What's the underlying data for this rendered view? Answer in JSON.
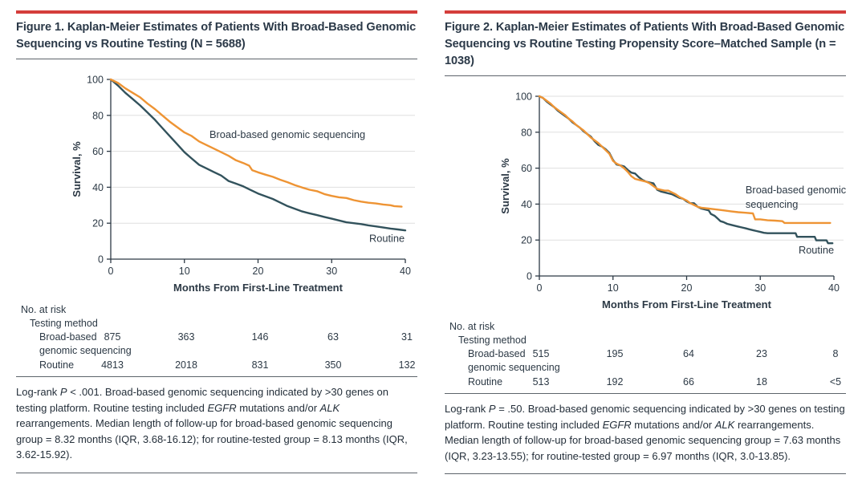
{
  "colors": {
    "accent_red": "#d43d3b",
    "ink": "#2c3945",
    "grid": "#dfdfdf",
    "rule": "#5d646b",
    "orange": "#ee9434",
    "teal": "#32525c"
  },
  "chart_data": [
    {
      "type": "line",
      "subtype": "kaplan-meier",
      "title": "",
      "xlabel": "Months From First-Line Treatment",
      "ylabel": "Survival, %",
      "xlim": [
        0,
        40
      ],
      "ylim": [
        0,
        100
      ],
      "xticks": [
        0,
        10,
        20,
        30,
        40
      ],
      "yticks": [
        0,
        20,
        40,
        60,
        80,
        100
      ],
      "grid": "horizontal",
      "legend_position": "in-plot-labels",
      "series": [
        {
          "name": "Broad-based genomic sequencing",
          "color": "#ee9434",
          "points": [
            [
              0,
              100
            ],
            [
              1,
              98
            ],
            [
              2,
              95
            ],
            [
              3,
              92.5
            ],
            [
              4,
              90
            ],
            [
              5,
              86.5
            ],
            [
              6,
              83.5
            ],
            [
              7,
              80
            ],
            [
              8,
              76.5
            ],
            [
              9,
              73.5
            ],
            [
              10,
              70.5
            ],
            [
              11,
              68.5
            ],
            [
              12,
              65.5
            ],
            [
              13,
              63.5
            ],
            [
              14,
              61.5
            ],
            [
              15,
              59.5
            ],
            [
              16,
              57.5
            ],
            [
              17,
              55
            ],
            [
              18,
              53.5
            ],
            [
              18.8,
              52
            ],
            [
              19.2,
              49.5
            ],
            [
              20,
              48.3
            ],
            [
              21,
              47
            ],
            [
              22,
              45.8
            ],
            [
              23,
              44.2
            ],
            [
              24,
              42.8
            ],
            [
              25,
              41.2
            ],
            [
              26,
              39.8
            ],
            [
              27,
              38.6
            ],
            [
              28,
              37.8
            ],
            [
              29,
              36.2
            ],
            [
              30,
              35.2
            ],
            [
              31,
              34.4
            ],
            [
              32,
              34
            ],
            [
              33,
              32.8
            ],
            [
              34,
              32
            ],
            [
              35,
              31.4
            ],
            [
              36,
              31
            ],
            [
              37,
              30.4
            ],
            [
              38,
              30
            ],
            [
              38.5,
              29.5
            ],
            [
              39.5,
              29.2
            ]
          ]
        },
        {
          "name": "Routine",
          "color": "#32525c",
          "points": [
            [
              0,
              100
            ],
            [
              1,
              96.5
            ],
            [
              2,
              92.5
            ],
            [
              3,
              89
            ],
            [
              4,
              85.5
            ],
            [
              5,
              81.5
            ],
            [
              6,
              77.5
            ],
            [
              7,
              73
            ],
            [
              8,
              68.5
            ],
            [
              9,
              64
            ],
            [
              10,
              59.5
            ],
            [
              11,
              56
            ],
            [
              12,
              52.5
            ],
            [
              13,
              50.5
            ],
            [
              14,
              48.5
            ],
            [
              15,
              46.5
            ],
            [
              15.5,
              45
            ],
            [
              16,
              43.5
            ],
            [
              17,
              42
            ],
            [
              18,
              40.5
            ],
            [
              19,
              38.5
            ],
            [
              20,
              36.5
            ],
            [
              21,
              35
            ],
            [
              22,
              33.5
            ],
            [
              23,
              31.5
            ],
            [
              24,
              29.5
            ],
            [
              25,
              28
            ],
            [
              26,
              26.5
            ],
            [
              27,
              25.5
            ],
            [
              28,
              24.5
            ],
            [
              29,
              23.5
            ],
            [
              30,
              22.5
            ],
            [
              31,
              21.5
            ],
            [
              32,
              20.5
            ],
            [
              33,
              20
            ],
            [
              34,
              19.5
            ],
            [
              35,
              18.8
            ],
            [
              36,
              18.2
            ],
            [
              37,
              17.6
            ],
            [
              38,
              17
            ],
            [
              39,
              16.5
            ],
            [
              40,
              16
            ]
          ]
        }
      ],
      "annotations": [
        {
          "lines": [
            "Broad-based genomic sequencing"
          ],
          "x": 13.4,
          "y": 67.5
        },
        {
          "lines": [
            "Routine"
          ],
          "x": 35.1,
          "y": 9.5
        }
      ]
    },
    {
      "type": "line",
      "subtype": "kaplan-meier",
      "title": "",
      "xlabel": "Months From First-Line Treatment",
      "ylabel": "Survival, %",
      "xlim": [
        0,
        40
      ],
      "ylim": [
        0,
        100
      ],
      "xticks": [
        0,
        10,
        20,
        30,
        40
      ],
      "yticks": [
        0,
        20,
        40,
        60,
        80,
        100
      ],
      "grid": "horizontal",
      "legend_position": "in-plot-labels",
      "series": [
        {
          "name": "Broad-based genomic sequencing",
          "color": "#ee9434",
          "points": [
            [
              0,
              100
            ],
            [
              0.5,
              99
            ],
            [
              1,
              97.5
            ],
            [
              1.5,
              96
            ],
            [
              2,
              94
            ],
            [
              2.5,
              92.5
            ],
            [
              3,
              91
            ],
            [
              3.5,
              89.5
            ],
            [
              4,
              87.5
            ],
            [
              4.5,
              86
            ],
            [
              5,
              84
            ],
            [
              5.5,
              82.5
            ],
            [
              6,
              81
            ],
            [
              6.5,
              79
            ],
            [
              7,
              77
            ],
            [
              7.5,
              75.5
            ],
            [
              8,
              74
            ],
            [
              8.5,
              72
            ],
            [
              9,
              70
            ],
            [
              9.5,
              68
            ],
            [
              10,
              64
            ],
            [
              10.5,
              62.5
            ],
            [
              11,
              61.5
            ],
            [
              11.5,
              60
            ],
            [
              12,
              58
            ],
            [
              12.5,
              55.5
            ],
            [
              13,
              54
            ],
            [
              13.5,
              53.5
            ],
            [
              14,
              53
            ],
            [
              14.5,
              52.5
            ],
            [
              15,
              51.5
            ],
            [
              15.5,
              50
            ],
            [
              16,
              48.5
            ],
            [
              16.5,
              48
            ],
            [
              17,
              47.5
            ],
            [
              17.5,
              47.5
            ],
            [
              18,
              46.5
            ],
            [
              18.5,
              45.5
            ],
            [
              19,
              44
            ],
            [
              19.5,
              43
            ],
            [
              20,
              42
            ],
            [
              20.5,
              40.5
            ],
            [
              21,
              39.5
            ],
            [
              21.5,
              38.5
            ],
            [
              22,
              38
            ],
            [
              23,
              37.5
            ],
            [
              24,
              37
            ],
            [
              25,
              36.5
            ],
            [
              26,
              36
            ],
            [
              27,
              35.5
            ],
            [
              28,
              35.2
            ],
            [
              29,
              34.8
            ],
            [
              29.3,
              31.5
            ],
            [
              30,
              31.5
            ],
            [
              31,
              31
            ],
            [
              32,
              30.8
            ],
            [
              33,
              30.5
            ],
            [
              33.3,
              29.5
            ],
            [
              36,
              29.5
            ],
            [
              39.5,
              29.5
            ]
          ]
        },
        {
          "name": "Routine",
          "color": "#32525c",
          "points": [
            [
              0,
              100
            ],
            [
              0.5,
              99
            ],
            [
              1,
              97
            ],
            [
              1.5,
              95.5
            ],
            [
              2,
              94
            ],
            [
              2.5,
              92
            ],
            [
              3,
              90.5
            ],
            [
              3.5,
              89
            ],
            [
              4,
              87.5
            ],
            [
              4.5,
              85.5
            ],
            [
              5,
              84
            ],
            [
              5.5,
              82.5
            ],
            [
              6,
              80.5
            ],
            [
              6.5,
              79
            ],
            [
              7,
              77.5
            ],
            [
              7.5,
              75
            ],
            [
              8,
              73
            ],
            [
              8.5,
              72
            ],
            [
              9,
              70.5
            ],
            [
              9.5,
              68.5
            ],
            [
              10,
              64.5
            ],
            [
              10.5,
              62
            ],
            [
              11,
              61.5
            ],
            [
              11.5,
              61
            ],
            [
              12,
              59
            ],
            [
              12.5,
              57.5
            ],
            [
              13,
              57
            ],
            [
              13.5,
              55
            ],
            [
              14,
              53.5
            ],
            [
              14.5,
              52.5
            ],
            [
              15,
              52
            ],
            [
              15.5,
              51.5
            ],
            [
              16,
              48
            ],
            [
              16.5,
              47
            ],
            [
              17,
              46.5
            ],
            [
              17.5,
              46
            ],
            [
              18,
              45.5
            ],
            [
              18.5,
              44.5
            ],
            [
              19,
              43.5
            ],
            [
              19.5,
              43
            ],
            [
              20,
              41.5
            ],
            [
              20.5,
              40.5
            ],
            [
              21,
              40.5
            ],
            [
              21.5,
              38.5
            ],
            [
              22,
              37.5
            ],
            [
              22.5,
              37
            ],
            [
              23,
              36.5
            ],
            [
              23.3,
              34.5
            ],
            [
              23.8,
              33.5
            ],
            [
              24.2,
              32
            ],
            [
              24.6,
              30.5
            ],
            [
              25,
              30
            ],
            [
              25.5,
              29
            ],
            [
              26,
              28.5
            ],
            [
              26.5,
              28
            ],
            [
              27,
              27.5
            ],
            [
              27.5,
              27
            ],
            [
              28,
              26.5
            ],
            [
              28.5,
              26
            ],
            [
              29,
              25.5
            ],
            [
              29.5,
              25
            ],
            [
              30,
              24.5
            ],
            [
              30.5,
              24
            ],
            [
              31,
              23.8
            ],
            [
              34.8,
              23.8
            ],
            [
              35,
              21.8
            ],
            [
              37.4,
              21.8
            ],
            [
              37.6,
              19.8
            ],
            [
              39,
              19.8
            ],
            [
              39.2,
              18.2
            ],
            [
              39.8,
              18.2
            ]
          ]
        }
      ],
      "annotations": [
        {
          "lines": [
            "Broad-based genomic",
            "sequencing"
          ],
          "x": 28,
          "y": 46
        },
        {
          "lines": [
            "Routine"
          ],
          "x": 35.2,
          "y": 12.5
        }
      ]
    }
  ],
  "panels": [
    {
      "title": "Figure 1. Kaplan-Meier Estimates of Patients With Broad-Based Genomic Sequencing vs Routine Testing (N = 5688)",
      "at_risk": {
        "heading": "No. at risk",
        "subheading": "Testing method",
        "rows": [
          {
            "label_lines": [
              "Broad-based",
              "genomic sequencing"
            ],
            "values": [
              "875",
              "363",
              "146",
              "63",
              "31"
            ]
          },
          {
            "label_lines": [
              "Routine"
            ],
            "values": [
              "4813",
              "2018",
              "831",
              "350",
              "132"
            ]
          }
        ]
      },
      "footnote": [
        {
          "t": "Log-rank "
        },
        {
          "t": "P",
          "i": true
        },
        {
          "t": " < .001. Broad-based genomic sequencing indicated by >30 genes on testing platform. Routine testing included "
        },
        {
          "t": "EGFR",
          "i": true
        },
        {
          "t": " mutations and/or "
        },
        {
          "t": "ALK",
          "i": true
        },
        {
          "t": " rearrangements. Median length of follow-up for broad-based genomic sequencing group = 8.32 months (IQR, 3.68-16.12); for routine-tested group = 8.13 months (IQR, 3.62-15.92)."
        }
      ]
    },
    {
      "title": "Figure 2. Kaplan-Meier Estimates of Patients With Broad-Based Genomic Sequencing vs Routine Testing Propensity Score–Matched Sample (n = 1038)",
      "at_risk": {
        "heading": "No. at risk",
        "subheading": "Testing method",
        "rows": [
          {
            "label_lines": [
              "Broad-based",
              "genomic sequencing"
            ],
            "values": [
              "515",
              "195",
              "64",
              "23",
              "8"
            ]
          },
          {
            "label_lines": [
              "Routine"
            ],
            "values": [
              "513",
              "192",
              "66",
              "18",
              "<5"
            ]
          }
        ]
      },
      "footnote": [
        {
          "t": "Log-rank "
        },
        {
          "t": "P",
          "i": true
        },
        {
          "t": " = .50. Broad-based genomic sequencing indicated by >30 genes on testing platform. Routine testing included "
        },
        {
          "t": "EGFR",
          "i": true
        },
        {
          "t": " mutations and/or "
        },
        {
          "t": "ALK",
          "i": true
        },
        {
          "t": " rearrangements. Median length of follow-up for broad-based genomic sequencing group = 7.63 months (IQR, 3.23-13.55); for routine-tested group = 6.97 months (IQR, 3.0-13.85)."
        }
      ]
    }
  ]
}
